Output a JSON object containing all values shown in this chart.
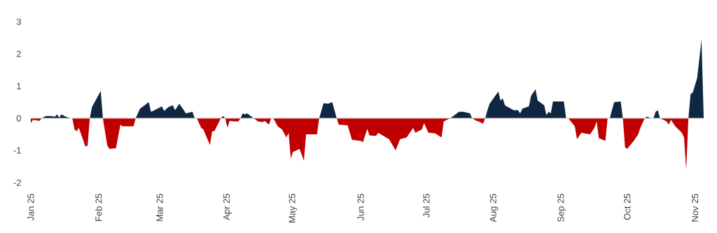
{
  "chart_data": {
    "type": "area",
    "xlim": [
      "2025-01-01",
      "2025-11-05"
    ],
    "xticks": [
      {
        "value": "2025-01-01",
        "label": "Jan 25"
      },
      {
        "value": "2025-02-01",
        "label": "Feb 25"
      },
      {
        "value": "2025-03-01",
        "label": "Mar 25"
      },
      {
        "value": "2025-04-01",
        "label": "Apr 25"
      },
      {
        "value": "2025-05-01",
        "label": "May 25"
      },
      {
        "value": "2025-06-01",
        "label": "Jun 25"
      },
      {
        "value": "2025-07-01",
        "label": "Jul 25"
      },
      {
        "value": "2025-08-01",
        "label": "Aug 25"
      },
      {
        "value": "2025-09-01",
        "label": "Sep 25"
      },
      {
        "value": "2025-10-01",
        "label": "Oct 25"
      },
      {
        "value": "2025-11-01",
        "label": "Nov 25"
      }
    ],
    "ylim": [
      -2,
      3
    ],
    "yticks": [
      -2,
      -1,
      0,
      1,
      2,
      3
    ],
    "ref_lines": [
      {
        "axis": "y",
        "value": 0,
        "color": "#c8c8c8"
      }
    ],
    "series": [
      {
        "color": "#0f2740",
        "x": [
          "2025-01-06",
          "2025-01-08",
          "2025-01-10",
          "2025-01-12",
          "2025-01-13",
          "2025-01-14",
          "2025-01-15",
          "2025-01-17",
          "2025-01-19",
          "2025-01-28",
          "2025-01-29",
          "2025-02-02",
          "2025-02-03",
          "2025-02-18",
          "2025-02-20",
          "2025-02-24",
          "2025-02-25",
          "2025-02-26",
          "2025-02-28",
          "2025-03-02",
          "2025-03-03",
          "2025-03-05",
          "2025-03-07",
          "2025-03-08",
          "2025-03-10",
          "2025-03-13",
          "2025-03-16",
          "2025-03-17",
          "2025-03-29",
          "2025-03-30",
          "2025-03-31",
          "2025-04-07",
          "2025-04-08",
          "2025-04-09",
          "2025-04-10",
          "2025-04-13",
          "2025-05-13",
          "2025-05-15",
          "2025-05-17",
          "2025-05-19",
          "2025-05-20",
          "2025-05-21",
          "2025-07-12",
          "2025-07-16",
          "2025-07-18",
          "2025-07-21",
          "2025-07-22",
          "2025-07-28",
          "2025-07-29",
          "2025-07-30",
          "2025-08-03",
          "2025-08-04",
          "2025-08-05",
          "2025-08-06",
          "2025-08-10",
          "2025-08-12",
          "2025-08-13",
          "2025-08-14",
          "2025-08-17",
          "2025-08-18",
          "2025-08-20",
          "2025-08-21",
          "2025-08-24",
          "2025-08-25",
          "2025-08-26",
          "2025-08-27",
          "2025-08-28",
          "2025-09-02",
          "2025-09-03",
          "2025-09-22",
          "2025-09-23",
          "2025-09-25",
          "2025-09-28",
          "2025-09-29",
          "2025-10-09",
          "2025-10-10",
          "2025-10-12",
          "2025-10-13",
          "2025-10-14",
          "2025-10-15",
          "2025-10-16",
          "2025-10-29",
          "2025-10-30",
          "2025-10-31",
          "2025-11-02",
          "2025-11-04",
          "2025-11-05"
        ],
        "values": [
          0,
          0.07,
          0.07,
          0.05,
          0.12,
          0.02,
          0.12,
          0.05,
          0,
          0,
          0.35,
          0.85,
          0,
          0,
          0.3,
          0.5,
          0.2,
          0.23,
          0.3,
          0.37,
          0.23,
          0.35,
          0.4,
          0.25,
          0.45,
          0.15,
          0.2,
          0,
          0,
          0.07,
          0,
          0,
          0.15,
          0.12,
          0.15,
          0,
          0,
          0.47,
          0.45,
          0.5,
          0.25,
          0,
          0,
          0.2,
          0.2,
          0.15,
          0,
          0,
          0.25,
          0.45,
          0.83,
          0.55,
          0.62,
          0.4,
          0.25,
          0.25,
          0.15,
          0.3,
          0.37,
          0.7,
          0.9,
          0.55,
          0.4,
          0.1,
          0.2,
          0.15,
          0.52,
          0.52,
          0,
          0,
          0,
          0.5,
          0.52,
          0,
          0,
          0.05,
          0,
          0,
          0.2,
          0.25,
          0,
          0,
          0.75,
          0.8,
          1.25,
          2.45,
          0
        ]
      },
      {
        "color": "#c00000",
        "x": [
          "2025-01-01",
          "2025-01-02",
          "2025-01-05",
          "2025-01-06",
          "2025-01-20",
          "2025-01-21",
          "2025-01-22",
          "2025-01-23",
          "2025-01-26",
          "2025-01-27",
          "2025-01-28",
          "2025-02-03",
          "2025-02-05",
          "2025-02-06",
          "2025-02-09",
          "2025-02-11",
          "2025-02-12",
          "2025-02-17",
          "2025-02-18",
          "2025-03-18",
          "2025-03-20",
          "2025-03-21",
          "2025-03-24",
          "2025-03-25",
          "2025-03-26",
          "2025-03-29",
          "2025-03-31",
          "2025-04-01",
          "2025-04-02",
          "2025-04-04",
          "2025-04-06",
          "2025-04-07",
          "2025-04-13",
          "2025-04-15",
          "2025-04-17",
          "2025-04-18",
          "2025-04-20",
          "2025-04-21",
          "2025-04-22",
          "2025-04-24",
          "2025-04-26",
          "2025-04-28",
          "2025-04-29",
          "2025-04-30",
          "2025-05-01",
          "2025-05-04",
          "2025-05-06",
          "2025-05-07",
          "2025-05-08",
          "2025-05-12",
          "2025-05-13",
          "2025-05-21",
          "2025-05-22",
          "2025-05-26",
          "2025-05-28",
          "2025-06-01",
          "2025-06-02",
          "2025-06-04",
          "2025-06-05",
          "2025-06-08",
          "2025-06-09",
          "2025-06-14",
          "2025-06-17",
          "2025-06-19",
          "2025-06-22",
          "2025-06-25",
          "2025-06-26",
          "2025-06-29",
          "2025-06-30",
          "2025-07-02",
          "2025-07-05",
          "2025-07-08",
          "2025-07-09",
          "2025-07-12",
          "2025-07-22",
          "2025-07-24",
          "2025-07-25",
          "2025-07-27",
          "2025-07-28",
          "2025-09-04",
          "2025-09-07",
          "2025-09-08",
          "2025-09-10",
          "2025-09-14",
          "2025-09-16",
          "2025-09-17",
          "2025-09-18",
          "2025-09-21",
          "2025-09-22",
          "2025-09-29",
          "2025-09-30",
          "2025-10-01",
          "2025-10-04",
          "2025-10-06",
          "2025-10-07",
          "2025-10-09",
          "2025-10-16",
          "2025-10-19",
          "2025-10-20",
          "2025-10-21",
          "2025-10-23",
          "2025-10-26",
          "2025-10-27",
          "2025-10-28",
          "2025-10-29"
        ],
        "values": [
          -0.15,
          -0.05,
          -0.08,
          0,
          0,
          -0.35,
          -0.4,
          -0.3,
          -0.88,
          -0.85,
          0,
          0,
          -0.85,
          -0.95,
          -0.93,
          -0.2,
          -0.25,
          -0.25,
          0,
          0,
          -0.3,
          -0.35,
          -0.83,
          -0.4,
          -0.4,
          0,
          0,
          -0.3,
          -0.08,
          -0.1,
          -0.1,
          0,
          0,
          -0.1,
          -0.12,
          -0.08,
          -0.2,
          0,
          0,
          -0.25,
          -0.35,
          -0.6,
          -0.45,
          -1.25,
          -1.05,
          -0.95,
          -1.32,
          -0.5,
          -0.5,
          -0.5,
          0,
          0,
          -0.2,
          -0.22,
          -0.67,
          -0.7,
          -0.75,
          -0.33,
          -0.53,
          -0.55,
          -0.45,
          -0.65,
          -1.0,
          -0.65,
          -0.6,
          -0.3,
          -0.45,
          -0.35,
          -0.15,
          -0.45,
          -0.47,
          -0.6,
          -0.1,
          0,
          0,
          -0.08,
          -0.1,
          -0.17,
          0,
          0,
          -0.25,
          -0.65,
          -0.45,
          -0.5,
          -0.3,
          -0.1,
          -0.62,
          -0.7,
          0,
          0,
          -0.9,
          -0.95,
          -0.7,
          -0.5,
          -0.3,
          0,
          0,
          -0.1,
          -0.2,
          -0.05,
          -0.25,
          -0.45,
          -0.6,
          -1.6,
          0
        ]
      }
    ]
  }
}
